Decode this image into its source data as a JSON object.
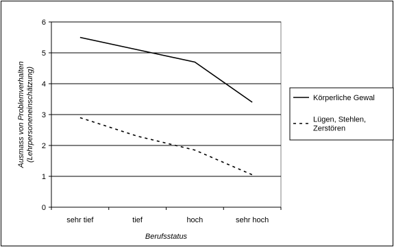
{
  "chart_data": {
    "type": "line",
    "title": "",
    "xlabel": "Berufsstatus",
    "ylabel_lines": [
      "Ausmass von Problemverhalten",
      "(Lehrpersoneneinschätzung)"
    ],
    "categories": [
      "sehr tief",
      "tief",
      "hoch",
      "sehr hoch"
    ],
    "ylim": [
      0,
      6
    ],
    "yticks": [
      "0",
      "1",
      "2",
      "3",
      "4",
      "5",
      "6"
    ],
    "grid": "horizontal",
    "legend_position": "right",
    "series": [
      {
        "legend_lines": [
          "Körperliche Gewal"
        ],
        "values": [
          5.5,
          5.1,
          4.7,
          3.4
        ],
        "style": "solid",
        "color": "#000000"
      },
      {
        "legend_lines": [
          "Lügen, Stehlen,",
          "Zerstören"
        ],
        "values": [
          2.9,
          2.3,
          1.85,
          1.05
        ],
        "style": "dashed",
        "color": "#000000"
      }
    ]
  }
}
